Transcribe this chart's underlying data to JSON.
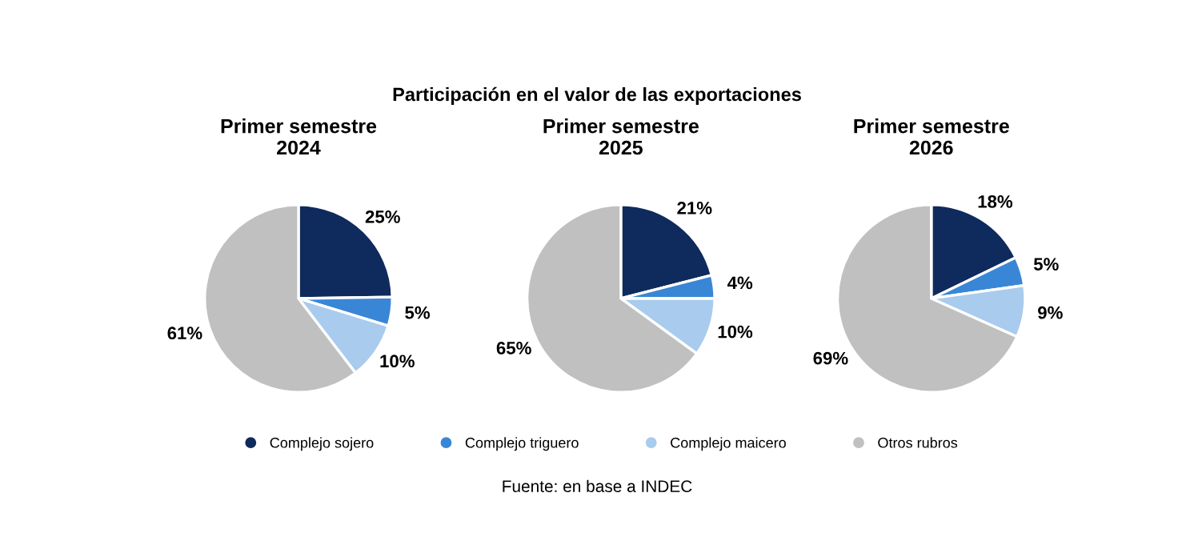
{
  "chart_data": [
    {
      "type": "pie",
      "title": "Primer semestre\n2024",
      "categories": [
        "Complejo sojero",
        "Complejo triguero",
        "Complejo maicero",
        "Otros rubros"
      ],
      "values": [
        25,
        5,
        10,
        61
      ],
      "colors": [
        "#0f2a5c",
        "#3a86d6",
        "#a9cbee",
        "#c0c0c0"
      ],
      "value_labels": [
        "25%",
        "5%",
        "10%",
        "61%"
      ],
      "legend": "bottom",
      "annotations": [
        "Participación en el valor de las exportaciones"
      ]
    },
    {
      "type": "pie",
      "title": "Primer semestre\n2025",
      "categories": [
        null,
        null,
        null,
        null
      ],
      "values": [
        21,
        4,
        10,
        65
      ],
      "colors": [
        "#0f2a5c",
        "#3a86d6",
        "#a9cbee",
        "#c0c0c0"
      ],
      "value_labels": [
        "21%",
        "4%",
        "10%",
        "65%"
      ],
      "annotations": [
        "Fuente: en base a INDEC"
      ]
    },
    {
      "type": "pie",
      "title": "Primer semestre\n2026",
      "categories": [
        null,
        null,
        null,
        null
      ],
      "values": [
        18,
        5,
        9,
        69
      ],
      "colors": [
        "#0f2a5c",
        "#3a86d6",
        "#a9cbee",
        "#c0c0c0"
      ],
      "value_labels": [
        "18%",
        "5%",
        "9%",
        "69%"
      ]
    }
  ]
}
